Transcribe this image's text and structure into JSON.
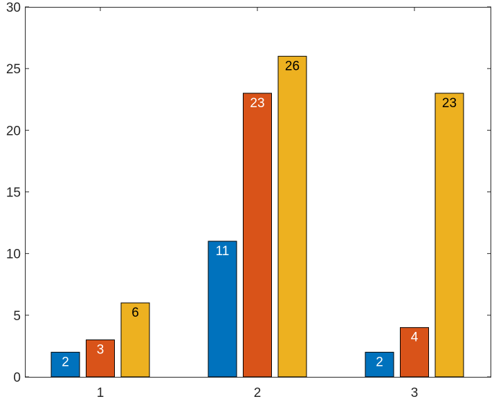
{
  "chart_data": {
    "type": "bar",
    "title": "",
    "xlabel": "",
    "ylabel": "",
    "categories": [
      "1",
      "2",
      "3"
    ],
    "series": [
      {
        "values": [
          2,
          11,
          2
        ],
        "color": "#0072BD",
        "label_color": "#ffffff"
      },
      {
        "values": [
          3,
          23,
          4
        ],
        "color": "#D95319",
        "label_color": "#ffffff"
      },
      {
        "values": [
          6,
          26,
          23
        ],
        "color": "#EDB120",
        "label_color": "#000000"
      }
    ],
    "ylim": [
      0,
      30
    ],
    "yticks": [
      "0",
      "5",
      "10",
      "15",
      "20",
      "25",
      "30"
    ],
    "grid": false,
    "legend": "none",
    "data_labels": true
  }
}
